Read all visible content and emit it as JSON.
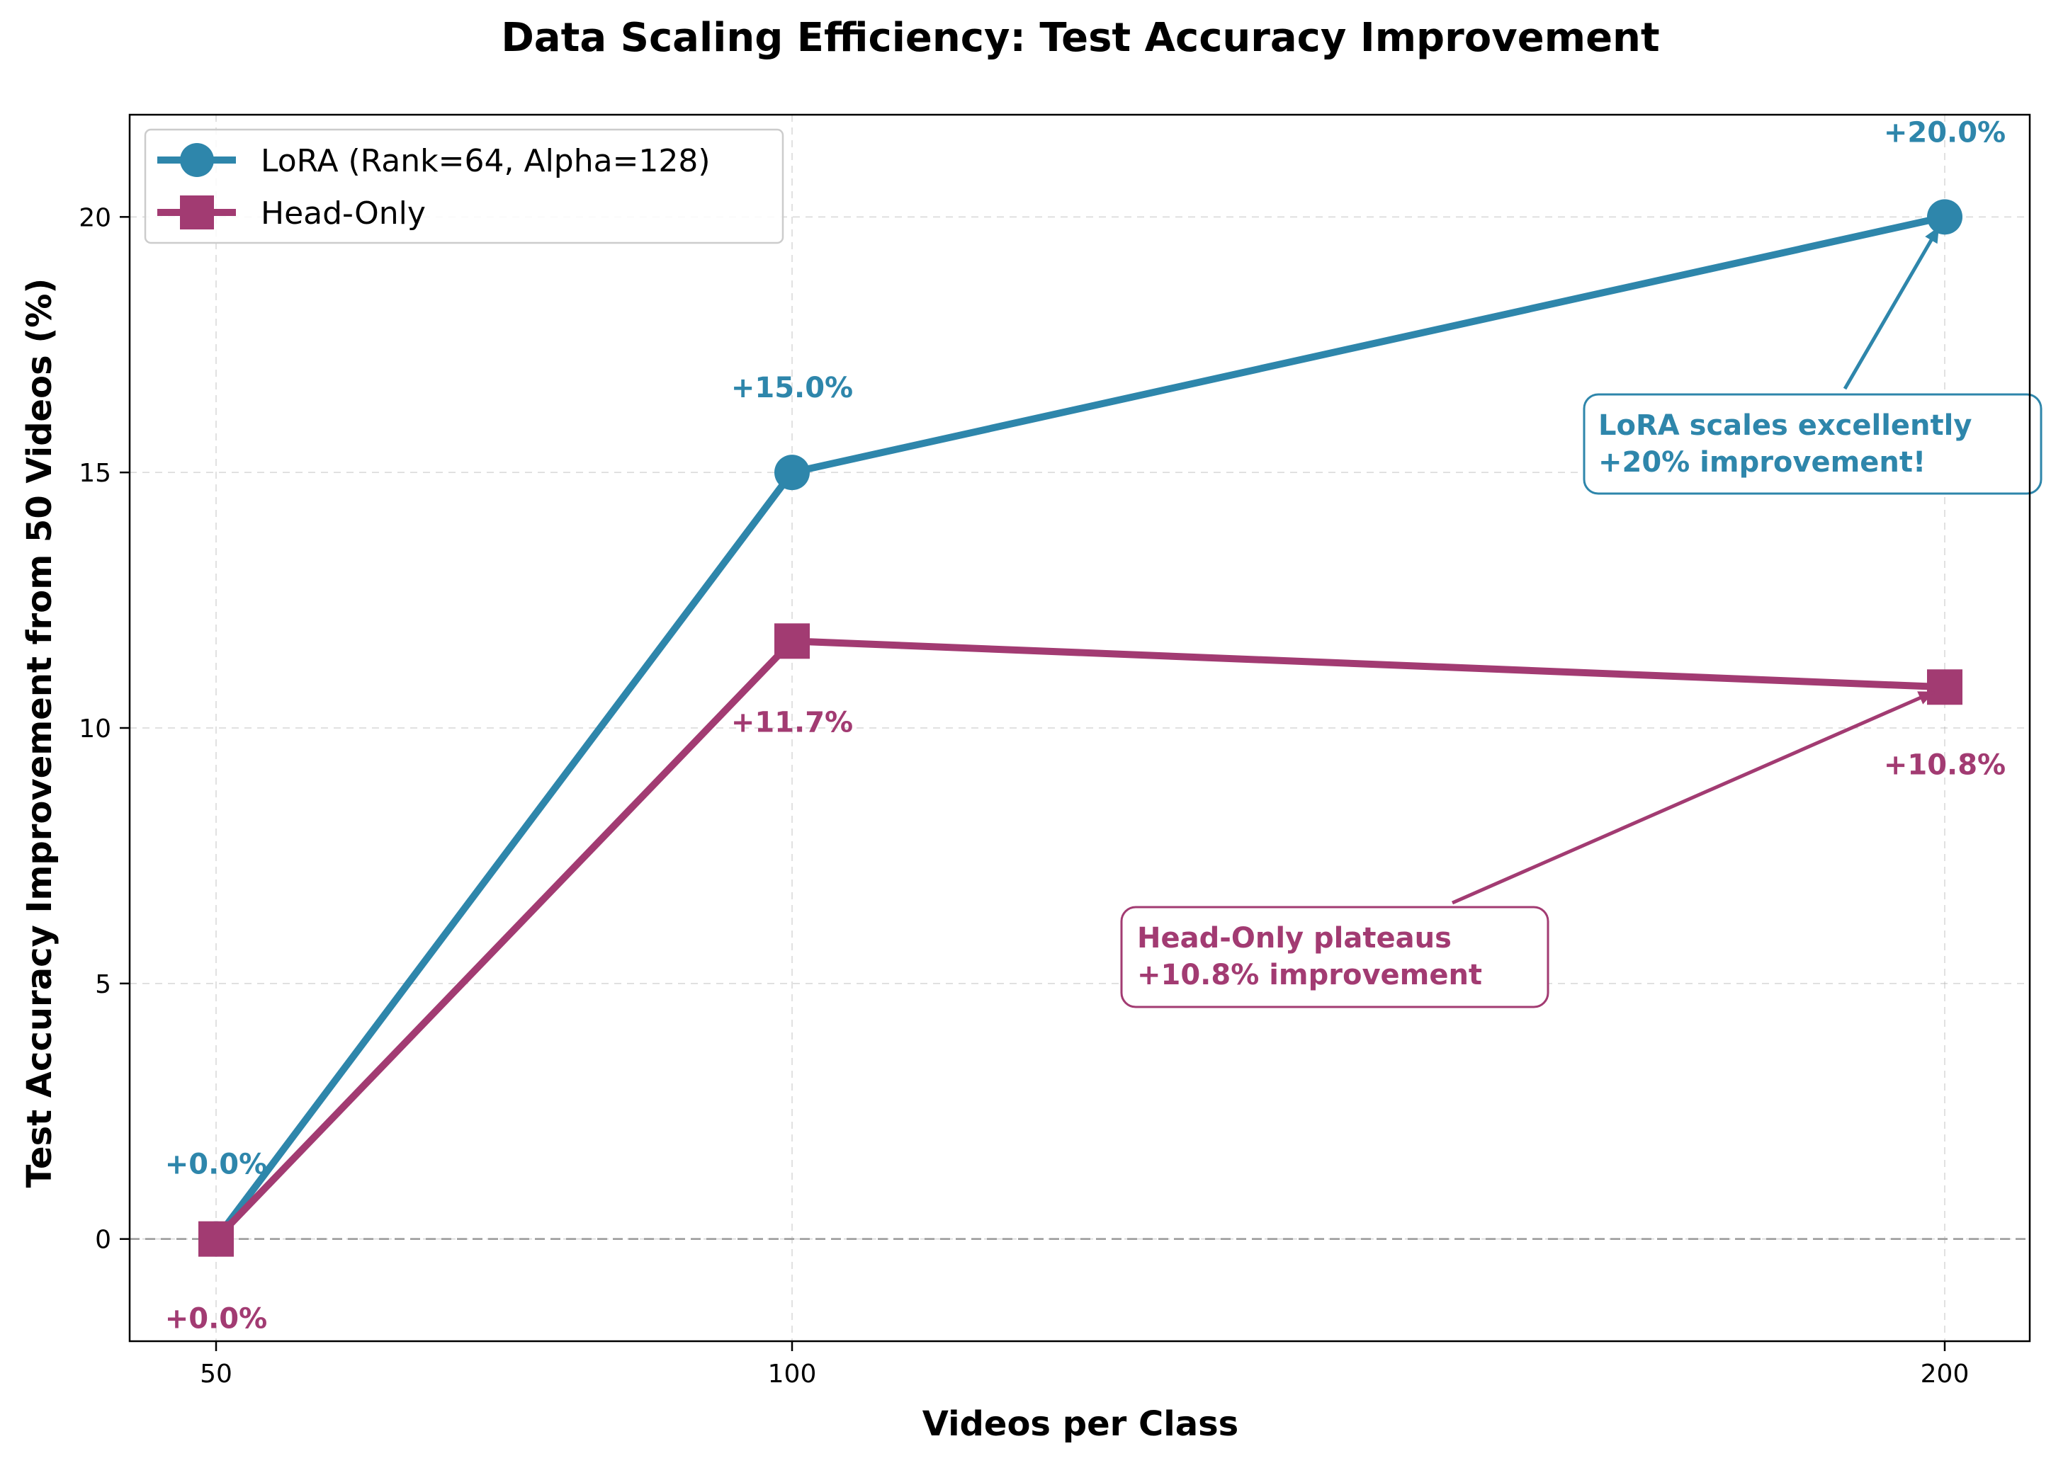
{
  "chart_data": {
    "type": "line",
    "title": "Data Scaling Efficiency: Test Accuracy Improvement",
    "xlabel": "Videos per Class",
    "ylabel": "Test Accuracy Improvement from 50 Videos (%)",
    "x": [
      "50",
      "100",
      "200"
    ],
    "ylim": [
      -2,
      22
    ],
    "yticks": [
      0,
      5,
      10,
      15,
      20
    ],
    "grid": true,
    "legend_position": "upper-left",
    "reference_line_y": 0,
    "series": [
      {
        "name": "LoRA (Rank=64, Alpha=128)",
        "values": [
          0.0,
          15.0,
          20.0
        ],
        "labels": [
          "+0.0%",
          "+15.0%",
          "+20.0%"
        ],
        "color": "#2E86AB",
        "marker": "circle"
      },
      {
        "name": "Head-Only",
        "values": [
          0.0,
          11.7,
          10.8
        ],
        "labels": [
          "+0.0%",
          "+11.7%",
          "+10.8%"
        ],
        "color": "#A23B72",
        "marker": "square"
      }
    ],
    "annotations": [
      {
        "lines": [
          "LoRA scales excellently",
          "+20% improvement!"
        ],
        "target_x": "200",
        "target_y": 20.0,
        "color": "#2E86AB"
      },
      {
        "lines": [
          "Head-Only plateaus",
          "+10.8% improvement"
        ],
        "target_x": "200",
        "target_y": 10.8,
        "color": "#A23B72"
      }
    ]
  }
}
